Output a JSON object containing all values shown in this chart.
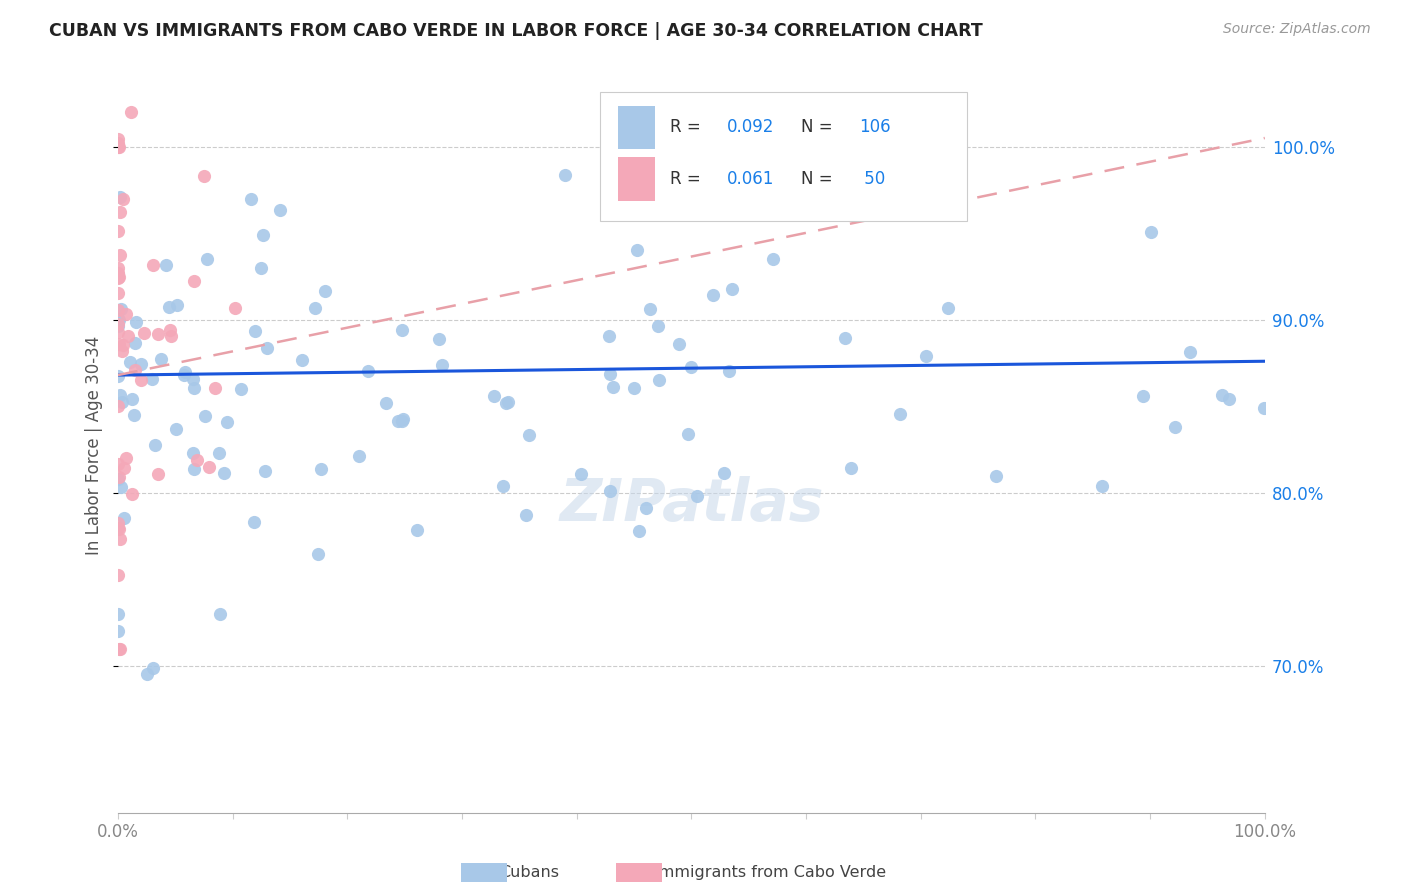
{
  "title": "CUBAN VS IMMIGRANTS FROM CABO VERDE IN LABOR FORCE | AGE 30-34 CORRELATION CHART",
  "source": "Source: ZipAtlas.com",
  "ylabel": "In Labor Force | Age 30-34",
  "xlim": [
    0.0,
    1.0
  ],
  "ylim": [
    0.615,
    1.04
  ],
  "yticks": [
    0.7,
    0.8,
    0.9,
    1.0
  ],
  "ytick_labels": [
    "70.0%",
    "80.0%",
    "90.0%",
    "100.0%"
  ],
  "xtick_vals": [
    0.0,
    0.1,
    0.2,
    0.3,
    0.4,
    0.5,
    0.6,
    0.7,
    0.8,
    0.9,
    1.0
  ],
  "xtick_labels": [
    "0.0%",
    "",
    "",
    "",
    "",
    "",
    "",
    "",
    "",
    "",
    "100.0%"
  ],
  "blue_color": "#a8c8e8",
  "pink_color": "#f4a8b8",
  "blue_line_color": "#1a56db",
  "pink_line_color": "#e8a0a8",
  "watermark": "ZIPatlas",
  "legend_r1": "R = 0.092",
  "legend_n1": "N = 106",
  "legend_r2": "R = 0.061",
  "legend_n2": "N =  50",
  "blue_trend_x0": 0.0,
  "blue_trend_y0": 0.868,
  "blue_trend_x1": 1.0,
  "blue_trend_y1": 0.876,
  "pink_trend_x0": 0.0,
  "pink_trend_y0": 0.868,
  "pink_trend_x1": 1.0,
  "pink_trend_y1": 1.005
}
